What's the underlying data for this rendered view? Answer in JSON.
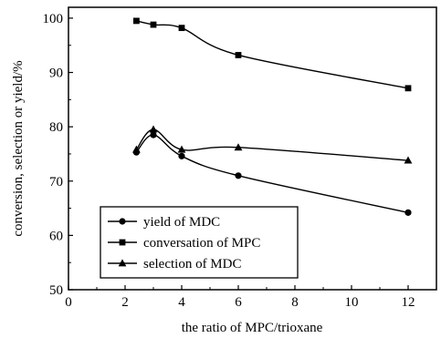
{
  "chart_data": {
    "type": "line",
    "title": "",
    "xlabel": "the ratio of MPC/trioxane",
    "ylabel": "conversion, selection or yield/%",
    "xlim": [
      0,
      13
    ],
    "ylim": [
      50,
      102
    ],
    "xticks": [
      0,
      2,
      4,
      6,
      8,
      10,
      12
    ],
    "yticks": [
      50,
      60,
      70,
      80,
      90,
      100
    ],
    "grid": false,
    "legend_position": "bottom-left",
    "series": [
      {
        "name": "yield of MDC",
        "marker": "circle",
        "x": [
          2.4,
          3,
          4,
          6,
          12
        ],
        "y": [
          75.3,
          78.5,
          74.6,
          71.0,
          64.2
        ]
      },
      {
        "name": "conversation of MPC",
        "marker": "square",
        "x": [
          2.4,
          3,
          4,
          6,
          12
        ],
        "y": [
          99.5,
          98.8,
          98.2,
          93.2,
          87.1
        ]
      },
      {
        "name": "selection of MDC",
        "marker": "triangle",
        "x": [
          2.4,
          3,
          4,
          6,
          12
        ],
        "y": [
          75.8,
          79.5,
          75.8,
          76.2,
          73.8
        ]
      }
    ]
  }
}
